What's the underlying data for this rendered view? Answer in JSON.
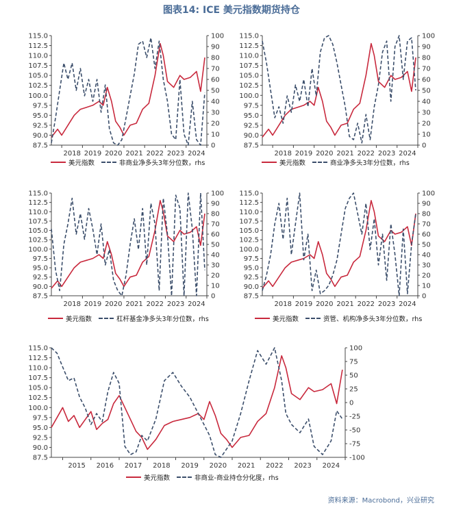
{
  "title": "图表14: ICE 美元指数期货持仓",
  "source": "资料来源：Macrobond，兴业研究",
  "colors": {
    "usd": "#c8283c",
    "pos": "#3a4d6a",
    "title": "#4a6c97"
  },
  "chart_data": [
    {
      "type": "line",
      "legend": [
        "美元指数",
        "非商业净多头3年分位数，rhs"
      ],
      "x_ticks": [
        "2018",
        "2019",
        "2020",
        "2021",
        "2022",
        "2023",
        "2024"
      ],
      "xlim": [
        2017.5,
        2025.0
      ],
      "y_left": {
        "ticks": [
          "87.5",
          "90.0",
          "92.5",
          "95.0",
          "97.5",
          "100.0",
          "102.5",
          "105.0",
          "107.5",
          "110.0",
          "112.5",
          "115.0"
        ],
        "ylim": [
          87.5,
          115.0
        ]
      },
      "y_right": {
        "ticks": [
          "0",
          "10",
          "20",
          "30",
          "40",
          "50",
          "60",
          "70",
          "80",
          "90",
          "100"
        ],
        "ylim": [
          0,
          100
        ]
      },
      "series": [
        {
          "name": "美元指数",
          "axis": "left",
          "x": [
            2017.5,
            2017.8,
            2018.0,
            2018.3,
            2018.6,
            2018.9,
            2019.2,
            2019.5,
            2019.8,
            2020.0,
            2020.2,
            2020.4,
            2020.6,
            2020.8,
            2021.0,
            2021.3,
            2021.6,
            2021.9,
            2022.2,
            2022.5,
            2022.75,
            2022.9,
            2023.1,
            2023.4,
            2023.7,
            2023.9,
            2024.2,
            2024.5,
            2024.7,
            2024.9
          ],
          "y": [
            89.5,
            91.5,
            90.0,
            92.5,
            95.0,
            96.5,
            97.0,
            97.5,
            98.5,
            97.5,
            102.0,
            98.5,
            93.5,
            92.0,
            90.0,
            92.5,
            93.0,
            96.5,
            98.0,
            105.0,
            113.0,
            110.0,
            103.5,
            102.0,
            105.0,
            104.0,
            104.5,
            106.0,
            101.0,
            109.5
          ]
        },
        {
          "name": "非商业净多头3年分位数，rhs",
          "axis": "right",
          "x": [
            2017.5,
            2017.7,
            2017.9,
            2018.1,
            2018.3,
            2018.5,
            2018.7,
            2018.9,
            2019.1,
            2019.3,
            2019.5,
            2019.7,
            2019.9,
            2020.1,
            2020.3,
            2020.5,
            2020.7,
            2020.9,
            2021.1,
            2021.3,
            2021.5,
            2021.7,
            2021.9,
            2022.1,
            2022.3,
            2022.5,
            2022.7,
            2022.9,
            2023.1,
            2023.3,
            2023.5,
            2023.7,
            2023.9,
            2024.1,
            2024.3,
            2024.5,
            2024.7,
            2024.9
          ],
          "y": [
            2,
            25,
            50,
            75,
            60,
            75,
            50,
            70,
            45,
            60,
            40,
            60,
            30,
            55,
            15,
            2,
            0,
            5,
            25,
            45,
            65,
            92,
            95,
            80,
            98,
            70,
            95,
            60,
            40,
            10,
            5,
            60,
            10,
            0,
            40,
            5,
            0,
            48
          ]
        }
      ]
    },
    {
      "type": "line",
      "legend": [
        "美元指数",
        "商业净多头3年分位数，rhs"
      ],
      "x_ticks": [
        "2018",
        "2019",
        "2020",
        "2021",
        "2022",
        "2023",
        "2024"
      ],
      "xlim": [
        2017.5,
        2025.0
      ],
      "y_left": {
        "ticks": [
          "87.5",
          "90.0",
          "92.5",
          "95.0",
          "97.5",
          "100.0",
          "102.5",
          "105.0",
          "107.5",
          "110.0",
          "112.5",
          "115.0"
        ],
        "ylim": [
          87.5,
          115.0
        ]
      },
      "y_right": {
        "ticks": [
          "0",
          "10",
          "20",
          "30",
          "40",
          "50",
          "60",
          "70",
          "80",
          "90",
          "100"
        ],
        "ylim": [
          0,
          100
        ]
      },
      "series": [
        {
          "name": "美元指数",
          "axis": "left",
          "x": [
            2017.5,
            2017.8,
            2018.0,
            2018.3,
            2018.6,
            2018.9,
            2019.2,
            2019.5,
            2019.8,
            2020.0,
            2020.2,
            2020.4,
            2020.6,
            2020.8,
            2021.0,
            2021.3,
            2021.6,
            2021.9,
            2022.2,
            2022.5,
            2022.75,
            2022.9,
            2023.1,
            2023.4,
            2023.7,
            2023.9,
            2024.2,
            2024.5,
            2024.7,
            2024.9
          ],
          "y": [
            89.5,
            91.5,
            90.0,
            92.5,
            95.0,
            96.5,
            97.0,
            97.5,
            98.5,
            97.5,
            102.0,
            98.5,
            93.5,
            92.0,
            90.0,
            92.5,
            93.0,
            96.5,
            98.0,
            105.0,
            113.0,
            110.0,
            103.5,
            102.0,
            105.0,
            104.0,
            104.5,
            106.0,
            101.0,
            109.5
          ]
        },
        {
          "name": "商业净多头3年分位数，rhs",
          "axis": "right",
          "x": [
            2017.5,
            2017.7,
            2017.9,
            2018.1,
            2018.3,
            2018.5,
            2018.7,
            2018.9,
            2019.1,
            2019.3,
            2019.5,
            2019.7,
            2019.9,
            2020.1,
            2020.3,
            2020.5,
            2020.7,
            2020.9,
            2021.1,
            2021.3,
            2021.5,
            2021.7,
            2021.9,
            2022.1,
            2022.3,
            2022.5,
            2022.7,
            2022.9,
            2023.1,
            2023.3,
            2023.5,
            2023.7,
            2023.9,
            2024.1,
            2024.3,
            2024.5,
            2024.7,
            2024.9
          ],
          "y": [
            95,
            75,
            50,
            25,
            35,
            20,
            45,
            30,
            55,
            40,
            60,
            35,
            70,
            45,
            85,
            98,
            100,
            92,
            75,
            55,
            35,
            8,
            5,
            20,
            2,
            28,
            5,
            35,
            55,
            85,
            95,
            40,
            90,
            100,
            60,
            95,
            98,
            50
          ]
        }
      ]
    },
    {
      "type": "line",
      "legend": [
        "美元指数",
        "杠杆基金净多头3年分位数，rhs"
      ],
      "x_ticks": [
        "2018",
        "2019",
        "2020",
        "2021",
        "2022",
        "2023",
        "2024"
      ],
      "xlim": [
        2017.5,
        2025.0
      ],
      "y_left": {
        "ticks": [
          "87.5",
          "90.0",
          "92.5",
          "95.0",
          "97.5",
          "100.0",
          "102.5",
          "105.0",
          "107.5",
          "110.0",
          "112.5",
          "115.0"
        ],
        "ylim": [
          87.5,
          115.0
        ]
      },
      "y_right": {
        "ticks": [
          "0",
          "10",
          "20",
          "30",
          "40",
          "50",
          "60",
          "70",
          "80",
          "90",
          "100"
        ],
        "ylim": [
          0,
          100
        ]
      },
      "series": [
        {
          "name": "美元指数",
          "axis": "left",
          "x": [
            2017.5,
            2017.8,
            2018.0,
            2018.3,
            2018.6,
            2018.9,
            2019.2,
            2019.5,
            2019.8,
            2020.0,
            2020.2,
            2020.4,
            2020.6,
            2020.8,
            2021.0,
            2021.3,
            2021.6,
            2021.9,
            2022.2,
            2022.5,
            2022.75,
            2022.9,
            2023.1,
            2023.4,
            2023.7,
            2023.9,
            2024.2,
            2024.5,
            2024.7,
            2024.9
          ],
          "y": [
            89.5,
            91.5,
            90.0,
            92.5,
            95.0,
            96.5,
            97.0,
            97.5,
            98.5,
            97.5,
            102.0,
            98.5,
            93.5,
            92.0,
            90.0,
            92.5,
            93.0,
            96.5,
            98.0,
            105.0,
            113.0,
            110.0,
            103.5,
            102.0,
            105.0,
            104.0,
            104.5,
            106.0,
            101.0,
            109.5
          ]
        },
        {
          "name": "杠杆基金净多头3年分位数，rhs",
          "axis": "right",
          "x": [
            2017.5,
            2017.7,
            2017.9,
            2018.1,
            2018.3,
            2018.5,
            2018.7,
            2018.9,
            2019.1,
            2019.3,
            2019.5,
            2019.7,
            2019.9,
            2020.1,
            2020.3,
            2020.5,
            2020.7,
            2020.9,
            2021.1,
            2021.3,
            2021.5,
            2021.7,
            2021.9,
            2022.1,
            2022.3,
            2022.5,
            2022.7,
            2022.9,
            2023.1,
            2023.3,
            2023.5,
            2023.7,
            2023.9,
            2024.1,
            2024.3,
            2024.5,
            2024.7,
            2024.9
          ],
          "y": [
            65,
            25,
            5,
            50,
            70,
            95,
            60,
            80,
            55,
            85,
            65,
            40,
            70,
            30,
            45,
            15,
            5,
            0,
            20,
            50,
            75,
            45,
            85,
            30,
            90,
            70,
            5,
            95,
            60,
            0,
            98,
            85,
            0,
            100,
            65,
            0,
            100,
            25
          ]
        }
      ]
    },
    {
      "type": "line",
      "legend": [
        "美元指数",
        "资管、机构净多头3年分位数，rhs"
      ],
      "x_ticks": [
        "2018",
        "2019",
        "2020",
        "2021",
        "2022",
        "2023",
        "2024"
      ],
      "xlim": [
        2017.5,
        2025.0
      ],
      "y_left": {
        "ticks": [
          "87.5",
          "90.0",
          "92.5",
          "95.0",
          "97.5",
          "100.0",
          "102.5",
          "105.0",
          "107.5",
          "110.0",
          "112.5",
          "115.0"
        ],
        "ylim": [
          87.5,
          115.0
        ]
      },
      "y_right": {
        "ticks": [
          "0",
          "10",
          "20",
          "30",
          "40",
          "50",
          "60",
          "70",
          "80",
          "90",
          "100"
        ],
        "ylim": [
          0,
          100
        ]
      },
      "series": [
        {
          "name": "美元指数",
          "axis": "left",
          "x": [
            2017.5,
            2017.8,
            2018.0,
            2018.3,
            2018.6,
            2018.9,
            2019.2,
            2019.5,
            2019.8,
            2020.0,
            2020.2,
            2020.4,
            2020.6,
            2020.8,
            2021.0,
            2021.3,
            2021.6,
            2021.9,
            2022.2,
            2022.5,
            2022.75,
            2022.9,
            2023.1,
            2023.4,
            2023.7,
            2023.9,
            2024.2,
            2024.5,
            2024.7,
            2024.9
          ],
          "y": [
            89.5,
            91.5,
            90.0,
            92.5,
            95.0,
            96.5,
            97.0,
            97.5,
            98.5,
            97.5,
            102.0,
            98.5,
            93.5,
            92.0,
            90.0,
            92.5,
            93.0,
            96.5,
            98.0,
            105.0,
            113.0,
            110.0,
            103.5,
            102.0,
            105.0,
            104.0,
            104.5,
            106.0,
            101.0,
            109.5
          ]
        },
        {
          "name": "资管、机构净多头3年分位数，rhs",
          "axis": "right",
          "x": [
            2017.5,
            2017.7,
            2017.9,
            2018.1,
            2018.3,
            2018.5,
            2018.7,
            2018.9,
            2019.1,
            2019.3,
            2019.5,
            2019.7,
            2019.9,
            2020.1,
            2020.3,
            2020.5,
            2020.7,
            2020.9,
            2021.1,
            2021.3,
            2021.5,
            2021.7,
            2021.9,
            2022.1,
            2022.3,
            2022.5,
            2022.7,
            2022.9,
            2023.1,
            2023.3,
            2023.5,
            2023.7,
            2023.9,
            2024.1,
            2024.3,
            2024.5,
            2024.7,
            2024.9
          ],
          "y": [
            5,
            20,
            40,
            70,
            90,
            55,
            95,
            40,
            70,
            100,
            35,
            60,
            5,
            25,
            2,
            5,
            10,
            20,
            35,
            60,
            85,
            95,
            100,
            80,
            60,
            90,
            45,
            75,
            30,
            60,
            15,
            70,
            40,
            0,
            65,
            2,
            50,
            80
          ]
        }
      ]
    },
    {
      "type": "line",
      "legend": [
        "美元指数",
        "非商业-商业持仓分化度，rhs"
      ],
      "x_ticks": [
        "2015",
        "2016",
        "2017",
        "2018",
        "2019",
        "2020",
        "2021",
        "2022",
        "2023",
        "2024"
      ],
      "xlim": [
        2014.6,
        2025.0
      ],
      "y_left": {
        "ticks": [
          "87.5",
          "90.0",
          "92.5",
          "95.0",
          "97.5",
          "100.0",
          "102.5",
          "105.0",
          "107.5",
          "110.0",
          "112.5",
          "115.0"
        ],
        "ylim": [
          87.5,
          115.0
        ]
      },
      "y_right": {
        "ticks": [
          "-100",
          "-75",
          "-50",
          "-25",
          "0",
          "25",
          "50",
          "75",
          "100"
        ],
        "ylim": [
          -100,
          100
        ]
      },
      "series": [
        {
          "name": "美元指数",
          "axis": "left",
          "x": [
            2014.6,
            2014.8,
            2015.0,
            2015.2,
            2015.4,
            2015.6,
            2015.8,
            2016.0,
            2016.2,
            2016.4,
            2016.6,
            2016.8,
            2017.0,
            2017.2,
            2017.4,
            2017.6,
            2017.8,
            2018.0,
            2018.3,
            2018.6,
            2018.9,
            2019.2,
            2019.5,
            2019.8,
            2020.0,
            2020.2,
            2020.4,
            2020.6,
            2020.8,
            2021.0,
            2021.3,
            2021.6,
            2021.9,
            2022.2,
            2022.5,
            2022.75,
            2022.9,
            2023.1,
            2023.4,
            2023.7,
            2023.9,
            2024.2,
            2024.5,
            2024.7,
            2024.9
          ],
          "y": [
            95.0,
            97.5,
            100.0,
            96.5,
            98.0,
            95.0,
            97.0,
            99.0,
            94.5,
            96.0,
            97.0,
            101.0,
            103.0,
            100.0,
            97.0,
            94.0,
            92.5,
            89.5,
            92.0,
            95.5,
            96.5,
            97.0,
            97.5,
            98.5,
            97.0,
            101.5,
            98.0,
            93.5,
            92.0,
            90.0,
            92.5,
            93.0,
            96.5,
            98.5,
            105.0,
            113.0,
            110.0,
            103.5,
            102.0,
            105.0,
            104.0,
            104.5,
            106.0,
            101.0,
            109.5
          ]
        },
        {
          "name": "非商业-商业持仓分化度，rhs",
          "axis": "right",
          "x": [
            2014.6,
            2014.8,
            2015.0,
            2015.2,
            2015.4,
            2015.6,
            2015.8,
            2016.0,
            2016.2,
            2016.4,
            2016.6,
            2016.8,
            2017.0,
            2017.2,
            2017.4,
            2017.6,
            2017.8,
            2018.0,
            2018.3,
            2018.6,
            2018.9,
            2019.2,
            2019.5,
            2019.8,
            2020.0,
            2020.2,
            2020.4,
            2020.6,
            2020.8,
            2021.0,
            2021.3,
            2021.6,
            2021.9,
            2022.2,
            2022.5,
            2022.75,
            2022.9,
            2023.1,
            2023.4,
            2023.7,
            2023.9,
            2024.2,
            2024.5,
            2024.7,
            2024.9
          ],
          "y": [
            100,
            90,
            65,
            40,
            45,
            10,
            -10,
            -40,
            -20,
            -35,
            20,
            55,
            35,
            -80,
            -95,
            -90,
            -60,
            -70,
            -30,
            40,
            55,
            30,
            10,
            -20,
            -40,
            -60,
            -95,
            -100,
            -85,
            -70,
            -20,
            40,
            95,
            70,
            100,
            40,
            -20,
            -40,
            -55,
            -30,
            -80,
            -95,
            -70,
            -15,
            -30
          ]
        }
      ]
    }
  ]
}
